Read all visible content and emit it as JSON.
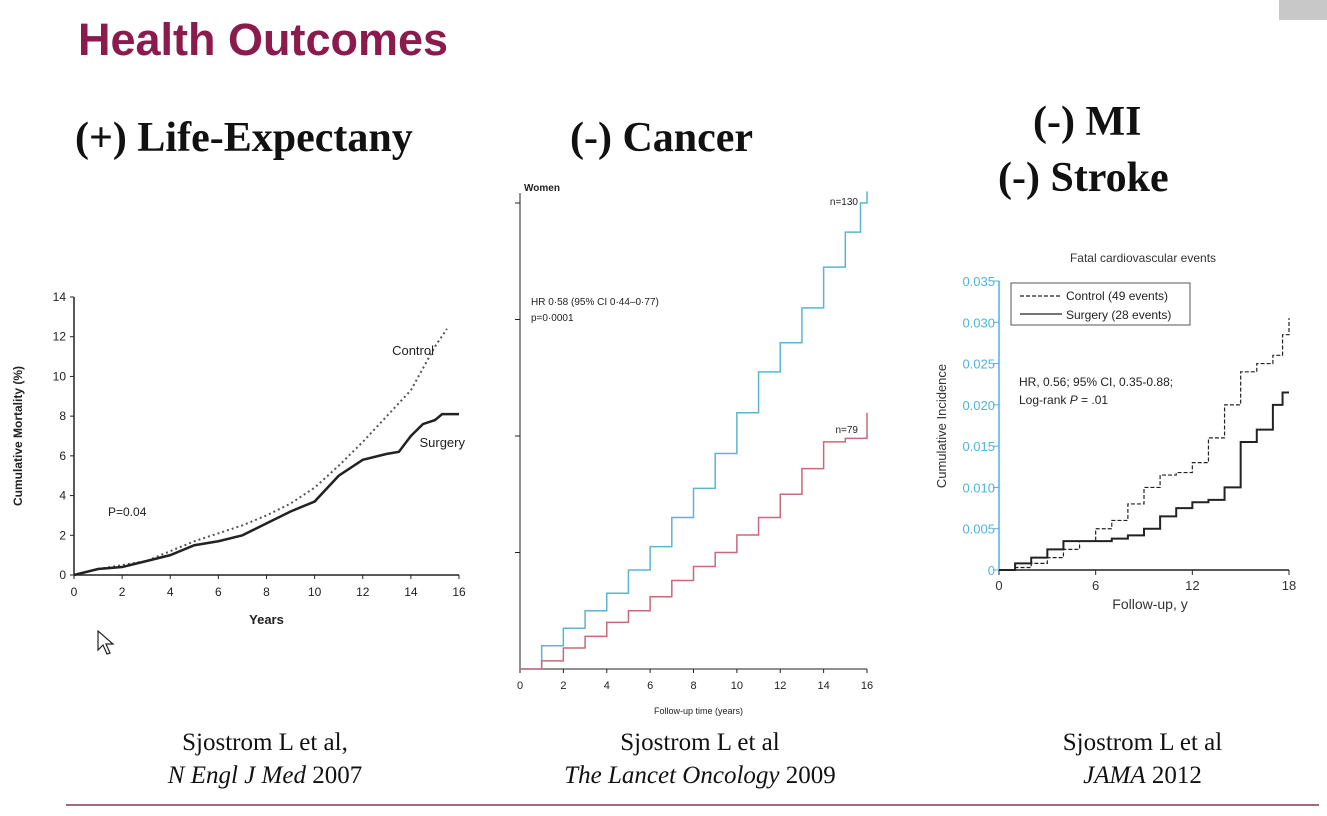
{
  "slide": {
    "title": "Health Outcomes",
    "headings": {
      "life": "(+) Life-Expectany",
      "cancer": "(-) Cancer",
      "mi": "(-) MI",
      "stroke": "(-) Stroke"
    },
    "citations": {
      "c1_line1": "Sjostrom L et  al,",
      "c1_journal": "N Engl J Med",
      "c1_year": " 2007",
      "c2_line1": "Sjostrom L et al",
      "c2_journal": "The Lancet Oncology",
      "c2_year": " 2009",
      "c3_line1": "Sjostrom L et al",
      "c3_journal": "JAMA",
      "c3_year": " 2012"
    }
  },
  "chart_data": [
    {
      "type": "line",
      "xlabel": "Years",
      "ylabel": "Cumulative Mortality (%)",
      "xlim": [
        0,
        16
      ],
      "ylim": [
        0,
        14
      ],
      "xticks": [
        0,
        2,
        4,
        6,
        8,
        10,
        12,
        14,
        16
      ],
      "yticks": [
        0,
        2,
        4,
        6,
        8,
        10,
        12,
        14
      ],
      "annotation": "P=0.04",
      "colors": {
        "control": "#555555",
        "surgery": "#222222"
      },
      "series": [
        {
          "name": "Control",
          "style": "dotted",
          "x": [
            0,
            1,
            2,
            3,
            4,
            5,
            6,
            7,
            8,
            9,
            10,
            11,
            12,
            13,
            14,
            15,
            15.5
          ],
          "y": [
            0,
            0.3,
            0.5,
            0.7,
            1.2,
            1.7,
            2.1,
            2.5,
            3.0,
            3.6,
            4.4,
            5.5,
            6.7,
            8.0,
            9.3,
            11.5,
            12.4
          ]
        },
        {
          "name": "Surgery",
          "style": "solid",
          "x": [
            0,
            1,
            2,
            3,
            4,
            5,
            6,
            7,
            8,
            9,
            10,
            11,
            12,
            13,
            13.5,
            14,
            14.5,
            15,
            15.3,
            16
          ],
          "y": [
            0,
            0.3,
            0.4,
            0.7,
            1.0,
            1.5,
            1.7,
            2.0,
            2.6,
            3.2,
            3.7,
            5.0,
            5.8,
            6.1,
            6.2,
            7.0,
            7.6,
            7.8,
            8.1,
            8.1
          ]
        }
      ]
    },
    {
      "type": "line",
      "title": "Women",
      "xlabel": "Follow-up time (years)",
      "xlim": [
        0,
        16
      ],
      "ylim": [
        0,
        4
      ],
      "xticks": [
        0,
        2,
        4,
        6,
        8,
        10,
        12,
        14,
        16
      ],
      "yticks": [
        1,
        2,
        3,
        4
      ],
      "annotation_line1": "HR 0·58 (95% CI 0·44–0·77)",
      "annotation_line2": "p=0·0001",
      "colors": {
        "control": "#5bb5cf",
        "surgery": "#c9687a"
      },
      "series": [
        {
          "name": "",
          "end_label": "n=130",
          "style": "step",
          "x": [
            0,
            1,
            2,
            3,
            4,
            5,
            6,
            7,
            8,
            9,
            10,
            11,
            12,
            13,
            14,
            15,
            15.7,
            16
          ],
          "y": [
            0,
            0.2,
            0.35,
            0.5,
            0.65,
            0.85,
            1.05,
            1.3,
            1.55,
            1.85,
            2.2,
            2.55,
            2.8,
            3.1,
            3.45,
            3.75,
            4.0,
            4.1
          ]
        },
        {
          "name": "",
          "end_label": "n=79",
          "style": "step",
          "x": [
            0,
            1,
            2,
            3,
            4,
            5,
            6,
            7,
            8,
            9,
            10,
            11,
            12,
            13,
            14,
            15,
            16
          ],
          "y": [
            0,
            0.07,
            0.18,
            0.28,
            0.4,
            0.5,
            0.62,
            0.76,
            0.88,
            1.0,
            1.15,
            1.3,
            1.5,
            1.72,
            1.95,
            1.98,
            2.2
          ]
        }
      ]
    },
    {
      "type": "line",
      "title": "Fatal cardiovascular events",
      "xlabel": "Follow-up, y",
      "ylabel": "Cumulative Incidence",
      "xlim": [
        0,
        18
      ],
      "ylim": [
        0,
        0.035
      ],
      "xticks": [
        0,
        6,
        12,
        18
      ],
      "yticks": [
        "0",
        "0.005",
        "0.010",
        "0.015",
        "0.020",
        "0.025",
        "0.030",
        "0.035"
      ],
      "annotation_line1": "HR, 0.56; 95% CI, 0.35-0.88;",
      "annotation_line2a": "Log-rank ",
      "annotation_line2b": "P",
      "annotation_line2c": " = .01",
      "legend_position": "top-left",
      "colors": {
        "axis": "#4fb4dc",
        "lines": "#222222"
      },
      "series": [
        {
          "name": "Control (49 events)",
          "style": "dashed",
          "x": [
            0,
            1,
            2,
            3,
            4,
            5,
            6,
            7,
            8,
            9,
            10,
            11,
            12,
            13,
            14,
            15,
            16,
            17,
            17.6,
            18
          ],
          "y": [
            0,
            0.0003,
            0.0008,
            0.0015,
            0.0025,
            0.0035,
            0.005,
            0.006,
            0.008,
            0.01,
            0.0115,
            0.0118,
            0.013,
            0.016,
            0.02,
            0.024,
            0.025,
            0.026,
            0.0285,
            0.0305
          ]
        },
        {
          "name": "Surgery (28 events)",
          "style": "solid",
          "x": [
            0,
            1,
            2,
            3,
            4,
            5,
            6,
            7,
            8,
            9,
            10,
            11,
            12,
            13,
            14,
            15,
            16,
            17,
            17.6,
            18
          ],
          "y": [
            0,
            0.0008,
            0.0015,
            0.0025,
            0.0035,
            0.0035,
            0.0035,
            0.0038,
            0.0042,
            0.005,
            0.0065,
            0.0075,
            0.0082,
            0.0085,
            0.01,
            0.0155,
            0.017,
            0.02,
            0.0215,
            0.0215
          ]
        }
      ]
    }
  ]
}
